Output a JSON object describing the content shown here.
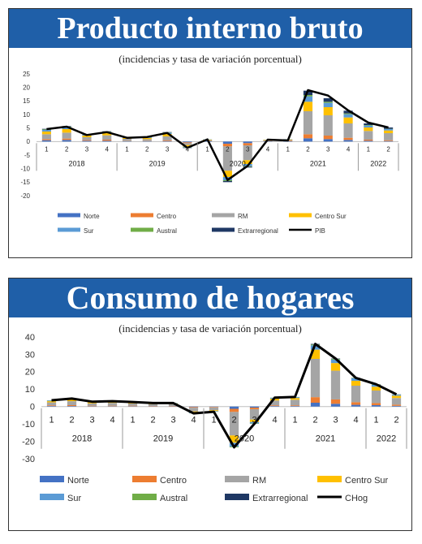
{
  "charts": [
    {
      "id": "pib",
      "banner": "Producto interno bruto",
      "subtitle": "(incidencias y tasa de variación porcentual)",
      "chart_data": {
        "type": "bar",
        "stacked": true,
        "categories": [
          "1",
          "2",
          "3",
          "4",
          "1",
          "2",
          "3",
          "4",
          "1",
          "2",
          "3",
          "4",
          "1",
          "2",
          "3",
          "4",
          "1",
          "2"
        ],
        "years": [
          {
            "label": "2018",
            "span": 4
          },
          {
            "label": "2019",
            "span": 4
          },
          {
            "label": "2020",
            "span": 4
          },
          {
            "label": "2021",
            "span": 4
          },
          {
            "label": "2022",
            "span": 2
          }
        ],
        "ylim": [
          -20,
          25
        ],
        "yticks": [
          -20,
          -15,
          -10,
          -5,
          0,
          5,
          10,
          15,
          20,
          25
        ],
        "series": [
          {
            "name": "Norte",
            "color": "#4472c4",
            "values": [
              0.5,
              0.6,
              0.3,
              0.3,
              0.1,
              0.1,
              0.2,
              -0.3,
              0.3,
              -0.8,
              -0.6,
              0.1,
              0.2,
              1.2,
              0.9,
              0.6,
              0.3,
              0.2
            ]
          },
          {
            "name": "Centro",
            "color": "#ed7d31",
            "values": [
              0.4,
              0.5,
              0.3,
              0.4,
              0.1,
              0.1,
              0.3,
              -0.3,
              0.1,
              -1.0,
              -0.8,
              0.1,
              0.2,
              1.5,
              1.3,
              0.8,
              0.4,
              0.3
            ]
          },
          {
            "name": "RM",
            "color": "#a5a5a5",
            "values": [
              1.8,
              2.2,
              1.0,
              1.6,
              0.8,
              0.7,
              1.4,
              -0.7,
              0.1,
              -9.0,
              -5.5,
              0.2,
              0.2,
              8.5,
              7.5,
              5.3,
              3.2,
              2.6
            ]
          },
          {
            "name": "Centro Sur",
            "color": "#ffc000",
            "values": [
              1.0,
              1.3,
              0.6,
              0.9,
              0.3,
              0.4,
              0.9,
              -0.6,
              0.2,
              -2.3,
              -1.4,
              0.2,
              0.2,
              3.5,
              3.0,
              2.2,
              1.3,
              1.0
            ]
          },
          {
            "name": "Sur",
            "color": "#5b9bd5",
            "values": [
              0.6,
              0.7,
              0.3,
              0.4,
              0.2,
              0.2,
              0.5,
              -0.3,
              0.1,
              -1.2,
              -0.8,
              0.1,
              0.1,
              2.0,
              1.6,
              1.2,
              0.7,
              0.5
            ]
          },
          {
            "name": "Austral",
            "color": "#70ad47",
            "values": [
              0.2,
              0.2,
              0.1,
              0.1,
              0.1,
              0.1,
              0.1,
              -0.1,
              0.0,
              -0.3,
              -0.2,
              0.0,
              0.0,
              0.5,
              0.4,
              0.3,
              0.2,
              0.1
            ]
          },
          {
            "name": "Extrarregional",
            "color": "#1f3864",
            "values": [
              0.2,
              0.2,
              0.1,
              0.1,
              0.1,
              0.1,
              0.1,
              -0.1,
              0.0,
              -0.4,
              -0.3,
              0.0,
              0.0,
              1.6,
              1.3,
              1.0,
              0.6,
              0.5
            ]
          }
        ],
        "line": {
          "name": "PIB",
          "color": "#000000",
          "values": [
            4.6,
            5.5,
            2.4,
            3.5,
            1.4,
            1.7,
            3.2,
            -2.3,
            0.8,
            -14.2,
            -9.0,
            0.7,
            0.4,
            19.0,
            17.0,
            11.5,
            7.0,
            5.2
          ]
        }
      }
    },
    {
      "id": "chog",
      "banner": "Consumo de hogares",
      "subtitle": "(incidencias y tasa de variación porcentual)",
      "chart_data": {
        "type": "bar",
        "stacked": true,
        "categories": [
          "1",
          "2",
          "3",
          "4",
          "1",
          "2",
          "3",
          "4",
          "1",
          "2",
          "3",
          "4",
          "1",
          "2",
          "3",
          "4",
          "1",
          "2"
        ],
        "years": [
          {
            "label": "2018",
            "span": 4
          },
          {
            "label": "2019",
            "span": 4
          },
          {
            "label": "2020",
            "span": 4
          },
          {
            "label": "2021",
            "span": 4
          },
          {
            "label": "2022",
            "span": 2
          }
        ],
        "ylim": [
          -30,
          40
        ],
        "yticks": [
          -30,
          -20,
          -10,
          0,
          10,
          20,
          30,
          40
        ],
        "series": [
          {
            "name": "Norte",
            "color": "#4472c4",
            "values": [
              0.3,
              0.3,
              0.2,
              0.2,
              0.2,
              0.1,
              0.1,
              -0.3,
              -0.2,
              -1.3,
              -0.6,
              0.3,
              0.3,
              2.2,
              1.6,
              1.0,
              0.8,
              0.4
            ]
          },
          {
            "name": "Centro",
            "color": "#ed7d31",
            "values": [
              0.4,
              0.5,
              0.3,
              0.3,
              0.3,
              0.2,
              0.2,
              -0.4,
              -0.3,
              -1.8,
              -0.9,
              0.4,
              0.4,
              3.2,
              2.5,
              1.5,
              1.2,
              0.7
            ]
          },
          {
            "name": "RM",
            "color": "#a5a5a5",
            "values": [
              1.7,
              2.3,
              1.3,
              1.6,
              1.2,
              1.0,
              1.0,
              -2.1,
              -1.6,
              -13.5,
              -6.0,
              2.8,
              3.2,
              22.0,
              16.5,
              9.5,
              7.2,
              3.8
            ]
          },
          {
            "name": "Centro Sur",
            "color": "#ffc000",
            "values": [
              0.7,
              0.9,
              0.6,
              0.6,
              0.5,
              0.4,
              0.4,
              -0.6,
              -0.5,
              -4.2,
              -1.4,
              1.0,
              1.0,
              5.3,
              4.4,
              2.8,
              2.2,
              1.3
            ]
          },
          {
            "name": "Sur",
            "color": "#5b9bd5",
            "values": [
              0.4,
              0.5,
              0.3,
              0.3,
              0.3,
              0.2,
              0.2,
              -0.4,
              -0.3,
              -2.2,
              -0.8,
              0.5,
              0.5,
              2.5,
              2.0,
              1.4,
              1.1,
              0.6
            ]
          },
          {
            "name": "Austral",
            "color": "#70ad47",
            "values": [
              0.1,
              0.1,
              0.1,
              0.1,
              0.1,
              0.1,
              0.1,
              -0.1,
              -0.1,
              -0.4,
              -0.2,
              0.1,
              0.1,
              0.5,
              0.4,
              0.2,
              0.2,
              0.1
            ]
          },
          {
            "name": "Extrarregional",
            "color": "#1f3864",
            "values": [
              0.0,
              0.0,
              0.0,
              0.0,
              0.0,
              0.0,
              0.0,
              0.0,
              0.0,
              0.0,
              0.0,
              0.0,
              0.0,
              0.3,
              0.2,
              0.1,
              0.1,
              0.1
            ]
          }
        ],
        "line": {
          "name": "CHog",
          "color": "#000000",
          "values": [
            3.6,
            4.6,
            2.8,
            3.1,
            2.6,
            2.0,
            2.0,
            -3.9,
            -3.0,
            -23.4,
            -9.9,
            5.1,
            5.5,
            36.0,
            27.6,
            16.5,
            12.8,
            7.0
          ]
        }
      }
    }
  ]
}
